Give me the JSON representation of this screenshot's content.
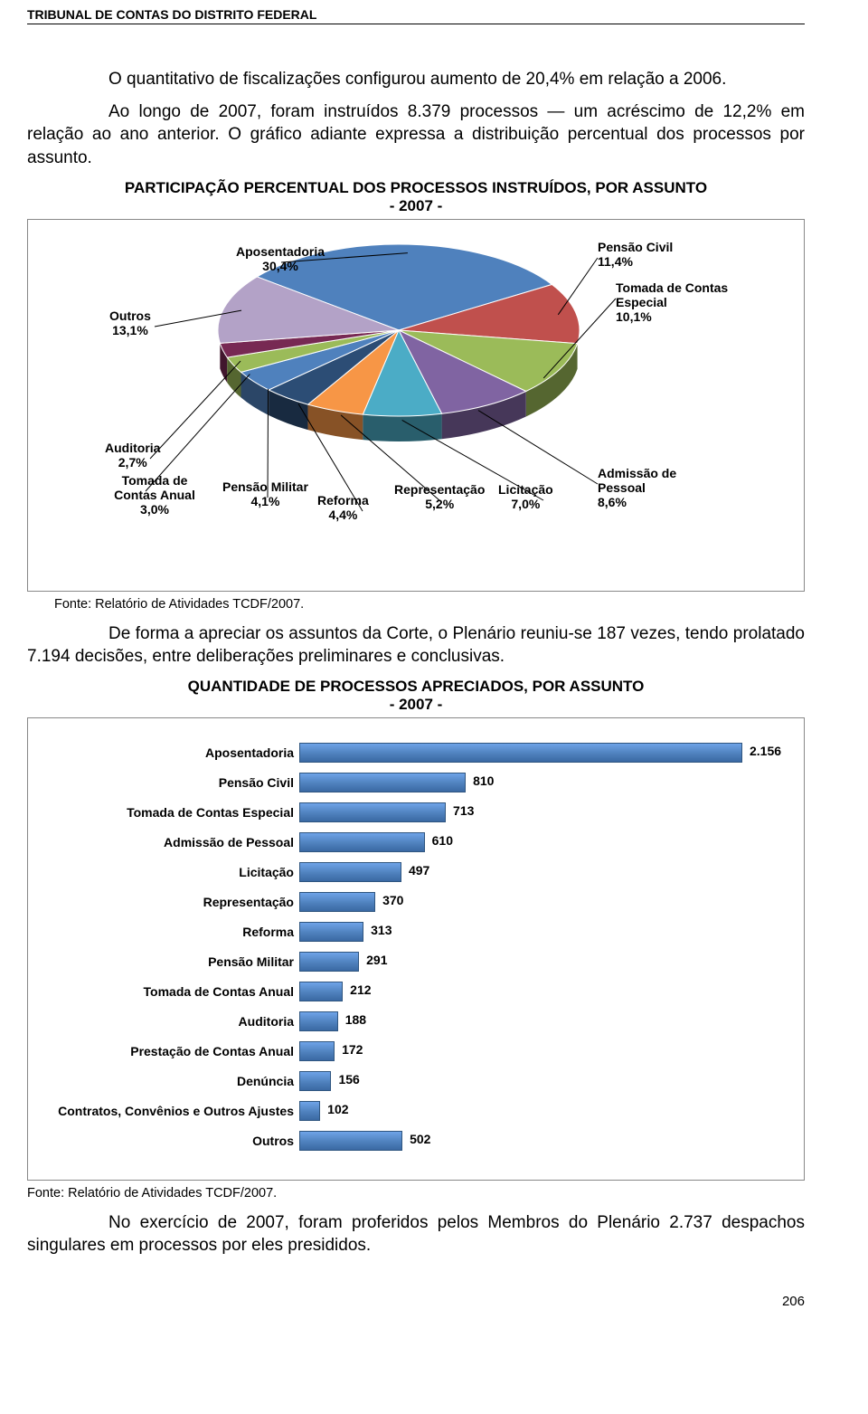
{
  "header": "TRIBUNAL DE CONTAS DO DISTRITO FEDERAL",
  "para1": "O quantitativo de fiscalizações configurou aumento de 20,4% em relação a 2006.",
  "para2": "Ao longo de 2007, foram instruídos 8.379 processos — um acréscimo de 12,2% em relação ao ano anterior. O gráfico adiante expressa a distribuição percentual dos processos por assunto.",
  "pie": {
    "title_caps": "PARTICIPAÇÃO PERCENTUAL DOS PROCESSOS INSTRUÍDOS, POR ASSUNTO",
    "title_sub": "- 2007 -",
    "type": "pie3d",
    "background": "#ffffff",
    "border_color": "#888888",
    "label_fontsize": 14,
    "slices": [
      {
        "label": "Aposentadoria",
        "pct": "30,4%",
        "value": 30.4,
        "color": "#4f81bd"
      },
      {
        "label": "Pensão Civil",
        "pct": "11,4%",
        "value": 11.4,
        "color": "#c0504d"
      },
      {
        "label": "Tomada de Contas Especial",
        "pct": "10,1%",
        "value": 10.1,
        "color": "#9bbb59"
      },
      {
        "label": "Admissão de Pessoal",
        "pct": "8,6%",
        "value": 8.6,
        "color": "#8064a2"
      },
      {
        "label": "Licitação",
        "pct": "7,0%",
        "value": 7.0,
        "color": "#4bacc6"
      },
      {
        "label": "Representação",
        "pct": "5,2%",
        "value": 5.2,
        "color": "#f79646"
      },
      {
        "label": "Reforma",
        "pct": "4,4%",
        "value": 4.4,
        "color": "#2c4d75"
      },
      {
        "label": "Pensão Militar",
        "pct": "4,1%",
        "value": 4.1,
        "color": "#4f81bd"
      },
      {
        "label": "Tomada de Contas Anual",
        "pct": "3,0%",
        "value": 3.0,
        "color": "#9bbb59"
      },
      {
        "label": "Auditoria",
        "pct": "2,7%",
        "value": 2.7,
        "color": "#772953"
      },
      {
        "label": "Outros",
        "pct": "13,1%",
        "value": 13.1,
        "color": "#b3a2c7"
      }
    ]
  },
  "source1": "Fonte: Relatório de Atividades TCDF/2007.",
  "para3": "De forma a apreciar os assuntos da Corte, o Plenário reuniu-se 187 vezes, tendo prolatado 7.194 decisões, entre deliberações preliminares e conclusivas.",
  "bars": {
    "title_caps": "QUANTIDADE DE PROCESSOS APRECIADOS, POR ASSUNTO",
    "title_sub": "- 2007 -",
    "type": "bar-horizontal",
    "bar_color": "#4f81bd",
    "bar_border": "#2f557f",
    "background": "#ffffff",
    "border_color": "#888888",
    "max_value": 2156,
    "label_fontsize": 14,
    "items": [
      {
        "label": "Aposentadoria",
        "value": 2156,
        "display": "2.156"
      },
      {
        "label": "Pensão Civil",
        "value": 810,
        "display": "810"
      },
      {
        "label": "Tomada de Contas Especial",
        "value": 713,
        "display": "713"
      },
      {
        "label": "Admissão de Pessoal",
        "value": 610,
        "display": "610"
      },
      {
        "label": "Licitação",
        "value": 497,
        "display": "497"
      },
      {
        "label": "Representação",
        "value": 370,
        "display": "370"
      },
      {
        "label": "Reforma",
        "value": 313,
        "display": "313"
      },
      {
        "label": "Pensão Militar",
        "value": 291,
        "display": "291"
      },
      {
        "label": "Tomada de Contas Anual",
        "value": 212,
        "display": "212"
      },
      {
        "label": "Auditoria",
        "value": 188,
        "display": "188"
      },
      {
        "label": "Prestação de Contas Anual",
        "value": 172,
        "display": "172"
      },
      {
        "label": "Denúncia",
        "value": 156,
        "display": "156"
      },
      {
        "label": "Contratos, Convênios e Outros Ajustes",
        "value": 102,
        "display": "102"
      },
      {
        "label": "Outros",
        "value": 502,
        "display": "502"
      }
    ]
  },
  "source2": "Fonte: Relatório de Atividades TCDF/2007.",
  "para4": "No exercício de 2007, foram proferidos pelos Membros do Plenário 2.737 despachos singulares em processos por eles presididos.",
  "page_number": "206"
}
